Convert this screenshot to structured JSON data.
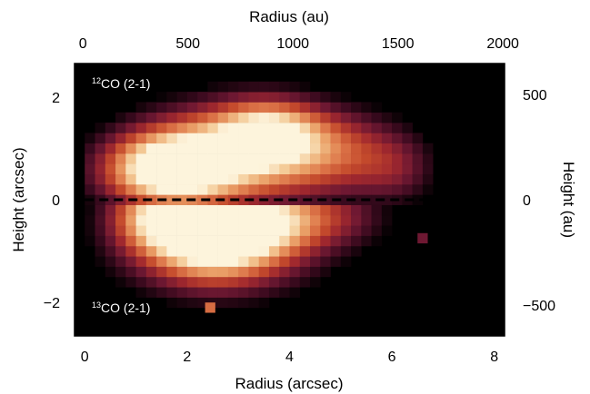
{
  "chart_data": {
    "type": "heatmap",
    "title": "",
    "xlabel_bottom": "Radius (arcsec)",
    "xlabel_top": "Radius (au)",
    "ylabel_left": "Height (arcsec)",
    "ylabel_right": "Height (au)",
    "xlim": [
      -0.2,
      8.2
    ],
    "ylim": [
      -2.65,
      2.65
    ],
    "xlim_top_au": [
      -40,
      2008
    ],
    "ylim_right_au": [
      -646,
      646
    ],
    "x_ticks": [
      0,
      2,
      4,
      6,
      8
    ],
    "x_tick_labels": [
      "0",
      "2",
      "4",
      "6",
      "8"
    ],
    "y_ticks": [
      -2,
      0,
      2
    ],
    "y_tick_labels": [
      "−2",
      "0",
      "2"
    ],
    "x_ticks_top_au": [
      0,
      500,
      1000,
      1500,
      2000
    ],
    "x_tick_labels_top": [
      "0",
      "500",
      "1000",
      "1500",
      "2000"
    ],
    "y_ticks_right_au": [
      -500,
      0,
      500
    ],
    "y_tick_labels_right": [
      "−500",
      "0",
      "500"
    ],
    "panel_labels": [
      {
        "sup": "12",
        "text": "CO (2-1)"
      },
      {
        "sup": "13",
        "text": "CO (2-1)"
      }
    ],
    "divider_y": 0,
    "colormap": [
      "#000000",
      "#3a0a1e",
      "#6e1832",
      "#a0282e",
      "#c44a2c",
      "#dc7448",
      "#eaa068",
      "#f4cb98",
      "#fdf4dc"
    ],
    "upper_blobs": [
      {
        "x": 1.6,
        "y": 0.6,
        "sx": 0.85,
        "sy": 0.5,
        "a": 1.0
      },
      {
        "x": 3.6,
        "y": 1.3,
        "sx": 0.7,
        "sy": 0.45,
        "a": 0.75
      },
      {
        "x": 4.9,
        "y": 1.0,
        "sx": 0.85,
        "sy": 0.55,
        "a": 0.45
      },
      {
        "x": 2.7,
        "y": 1.1,
        "sx": 1.1,
        "sy": 0.6,
        "a": 0.55
      },
      {
        "x": 6.1,
        "y": 0.6,
        "sx": 0.55,
        "sy": 0.5,
        "a": 0.25
      },
      {
        "x": 3.0,
        "y": 0.4,
        "sx": 1.5,
        "sy": 0.5,
        "a": 0.35
      }
    ],
    "lower_blobs": [
      {
        "x": 1.5,
        "y": -0.3,
        "sx": 0.7,
        "sy": 0.5,
        "a": 0.9
      },
      {
        "x": 2.5,
        "y": -0.6,
        "sx": 0.75,
        "sy": 0.55,
        "a": 0.95
      },
      {
        "x": 3.5,
        "y": -0.4,
        "sx": 0.75,
        "sy": 0.5,
        "a": 0.75
      },
      {
        "x": 2.6,
        "y": -1.2,
        "sx": 1.3,
        "sy": 0.55,
        "a": 0.4
      },
      {
        "x": 4.8,
        "y": -0.3,
        "sx": 0.8,
        "sy": 0.45,
        "a": 0.35
      }
    ],
    "isolated_pixels": [
      {
        "x": 2.45,
        "y": -2.1,
        "level": 0.6
      },
      {
        "x": 6.6,
        "y": -0.75,
        "level": 0.25
      }
    ]
  }
}
